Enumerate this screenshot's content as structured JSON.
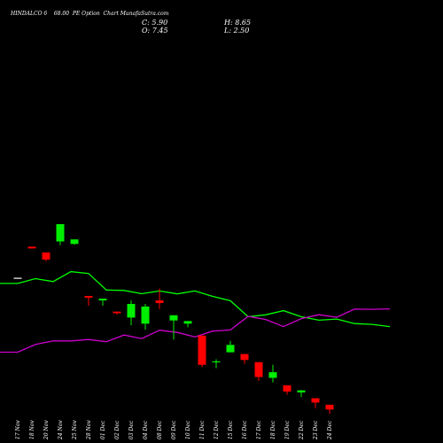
{
  "header": {
    "title": "HINDALCO 6    68.00  PE Option  Chart MunafaSutra.com",
    "close": "C: 5.90",
    "high": "H: 8.65",
    "open": "O: 7.45",
    "low": "L: 2.50"
  },
  "colors": {
    "background": "#000000",
    "up": "#00ee00",
    "down": "#ff0000",
    "flat": "#ffffff",
    "line_green": "#00ff00",
    "line_magenta": "#cc00cc"
  },
  "chart_data": {
    "type": "candlestick",
    "categories": [
      "17 Nov",
      "18 Nov",
      "20 Nov",
      "24 Nov",
      "25 Nov",
      "28 Nov",
      "01 Dec",
      "02 Dec",
      "03 Dec",
      "04 Dec",
      "08 Dec",
      "09 Dec",
      "10 Dec",
      "11 Dec",
      "12 Dec",
      "15 Dec",
      "16 Dec",
      "17 Dec",
      "18 Dec",
      "19 Dec",
      "22 Dec",
      "23 Dec",
      "24 Dec"
    ],
    "ohlc": [
      {
        "o": 100.0,
        "h": 100.0,
        "l": 100.0,
        "c": 100.0
      },
      {
        "o": 121.4,
        "h": 121.4,
        "l": 120.2,
        "c": 120.2
      },
      {
        "o": 117.4,
        "h": 117.4,
        "l": 111.3,
        "c": 112.5
      },
      {
        "o": 125.0,
        "h": 136.9,
        "l": 122.5,
        "c": 136.9
      },
      {
        "o": 123.3,
        "h": 126.4,
        "l": 122.6,
        "c": 126.4
      },
      {
        "o": 87.5,
        "h": 87.5,
        "l": 80.8,
        "c": 86.3
      },
      {
        "o": 84.4,
        "h": 85.6,
        "l": 80.8,
        "c": 85.6
      },
      {
        "o": 76.7,
        "h": 76.7,
        "l": 74.8,
        "c": 75.6
      },
      {
        "o": 72.6,
        "h": 84.4,
        "l": 67.3,
        "c": 82.0
      },
      {
        "o": 68.4,
        "h": 82.0,
        "l": 64.3,
        "c": 80.2
      },
      {
        "o": 84.4,
        "h": 92.6,
        "l": 78.5,
        "c": 82.6
      },
      {
        "o": 70.6,
        "h": 74.2,
        "l": 57.5,
        "c": 74.2
      },
      {
        "o": 68.4,
        "h": 70.2,
        "l": 65.9,
        "c": 70.2
      },
      {
        "o": 60.2,
        "h": 60.2,
        "l": 38.5,
        "c": 40.1
      },
      {
        "o": 41.9,
        "h": 43.9,
        "l": 37.8,
        "c": 42.5
      },
      {
        "o": 48.7,
        "h": 56.5,
        "l": 48.7,
        "c": 53.8
      },
      {
        "o": 47.5,
        "h": 47.5,
        "l": 40.8,
        "c": 43.4
      },
      {
        "o": 41.9,
        "h": 41.9,
        "l": 29.0,
        "c": 31.7
      },
      {
        "o": 31.1,
        "h": 40.1,
        "l": 28.0,
        "c": 35.0
      },
      {
        "o": 26.0,
        "h": 26.0,
        "l": 19.4,
        "c": 21.7
      },
      {
        "o": 21.1,
        "h": 22.7,
        "l": 18.0,
        "c": 22.5
      },
      {
        "o": 17.1,
        "h": 17.1,
        "l": 10.2,
        "c": 14.1
      },
      {
        "o": 12.6,
        "h": 12.6,
        "l": 6.3,
        "c": 9.3
      }
    ],
    "line_green": [
      96.1,
      96.1,
      99.4,
      97.4,
      104.2,
      102.9,
      91.6,
      91.3,
      89.0,
      90.9,
      88.9,
      90.9,
      87.2,
      84.2,
      73.2,
      74.5,
      77.4,
      73.2,
      70.8,
      71.6,
      68.5,
      67.9,
      66.4
    ],
    "line_magenta": [
      48.8,
      48.8,
      54.1,
      56.5,
      56.5,
      57.5,
      56.0,
      60.6,
      58.1,
      63.9,
      62.4,
      59.3,
      63.3,
      64.1,
      73.4,
      71.3,
      66.4,
      71.9,
      74.6,
      72.8,
      78.4,
      78.3,
      78.6
    ]
  }
}
